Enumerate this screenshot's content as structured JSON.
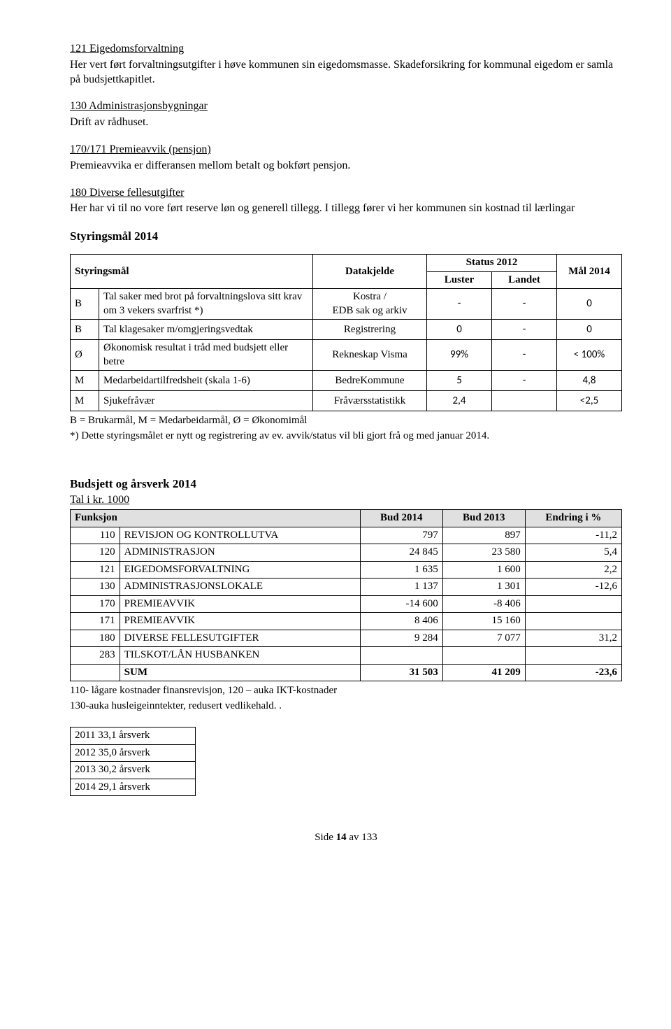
{
  "s121": {
    "title": "121 Eigedomsforvaltning",
    "body": "Her vert ført forvaltningsutgifter i høve kommunen sin eigedomsmasse. Skadeforsikring for kommunal eigedom er samla på budsjettkapitlet."
  },
  "s130": {
    "title": "130 Administrasjonsbygningar",
    "body": "Drift av rådhuset."
  },
  "s170": {
    "title": "170/171 Premieavvik (pensjon)",
    "body": "Premieavvika er differansen mellom betalt og bokført pensjon."
  },
  "s180": {
    "title": "180 Diverse fellesutgifter",
    "body": "Her har vi til no vore ført reserve løn og generell tillegg. I tillegg fører vi her kommunen sin kostnad til lærlingar"
  },
  "styringsmal_heading": "Styringsmål 2014",
  "styr_header": {
    "col1": "Styringsmål",
    "col2": "Datakjelde",
    "col3": "Status 2012",
    "col3a": "Luster",
    "col3b": "Landet",
    "col4": "Mål 2014"
  },
  "styr_rows": [
    {
      "code": "B",
      "desc": "Tal saker med brot på forvaltningslova sitt krav om 3 vekers svarfrist *)",
      "data": "Kostra /\nEDB sak og arkiv",
      "luster": "-",
      "landet": "-",
      "mal": "0"
    },
    {
      "code": "B",
      "desc": "Tal klagesaker m/omgjeringsvedtak",
      "data": "Registrering",
      "luster": "0",
      "landet": "-",
      "mal": "0"
    },
    {
      "code": "Ø",
      "desc": "Økonomisk resultat i tråd med budsjett eller betre",
      "data": "Rekneskap Visma",
      "luster": "99%",
      "landet": "-",
      "mal": "< 100%"
    },
    {
      "code": "M",
      "desc": "Medarbeidartilfredsheit (skala 1-6)",
      "data": "BedreKommune",
      "luster": "5",
      "landet": "-",
      "mal": "4,8"
    },
    {
      "code": "M",
      "desc": "Sjukefråvær",
      "data": "Fråværsstatistikk",
      "luster": "2,4",
      "landet": "",
      "mal": "<2,5"
    }
  ],
  "styr_footnote1": "B = Brukarmål,  M = Medarbeidarmål, Ø = Økonomimål",
  "styr_footnote2": "*) Dette styringsmålet er nytt og registrering av ev. avvik/status vil bli gjort frå og med januar 2014.",
  "budget_heading": "Budsjett og årsverk 2014",
  "budget_sub": "Tal i kr. 1000",
  "budget_header": {
    "c1": "Funksjon",
    "c2": "Bud 2014",
    "c3": "Bud 2013",
    "c4": "Endring i %"
  },
  "budget_rows": [
    {
      "code": "110",
      "name": "REVISJON OG KONTROLLUTVA",
      "b14": "797",
      "b13": "897",
      "end": "-11,2"
    },
    {
      "code": "120",
      "name": "ADMINISTRASJON",
      "b14": "24 845",
      "b13": "23 580",
      "end": "5,4"
    },
    {
      "code": "121",
      "name": "EIGEDOMSFORVALTNING",
      "b14": "1 635",
      "b13": "1 600",
      "end": "2,2"
    },
    {
      "code": "130",
      "name": "ADMINISTRASJONSLOKALE",
      "b14": "1 137",
      "b13": "1 301",
      "end": "-12,6"
    },
    {
      "code": "170",
      "name": "PREMIEAVVIK",
      "b14": "-14 600",
      "b13": "-8 406",
      "end": ""
    },
    {
      "code": "171",
      "name": "PREMIEAVVIK",
      "b14": "8 406",
      "b13": "15 160",
      "end": ""
    },
    {
      "code": "180",
      "name": "DIVERSE FELLESUTGIFTER",
      "b14": "9 284",
      "b13": "7 077",
      "end": "31,2"
    },
    {
      "code": "283",
      "name": "TILSKOT/LÅN HUSBANKEN",
      "b14": "",
      "b13": "",
      "end": ""
    }
  ],
  "budget_sum": {
    "label": "SUM",
    "b14": "31 503",
    "b13": "41 209",
    "end": "-23,6"
  },
  "budget_footnote1": "110- lågare kostnader finansrevisjon, 120 – auka IKT-kostnader",
  "budget_footnote2": "130-auka husleigeinntekter, redusert vedlikehald. .",
  "arsverk": [
    {
      "y": "2011",
      "v": "33,1 årsverk"
    },
    {
      "y": "2012",
      "v": "35,0 årsverk"
    },
    {
      "y": "2013",
      "v": "30,2 årsverk"
    },
    {
      "y": "2014",
      "v": "29,1 årsverk"
    }
  ],
  "footer_pre": "Side ",
  "footer_page": "14",
  "footer_post": " av 133"
}
